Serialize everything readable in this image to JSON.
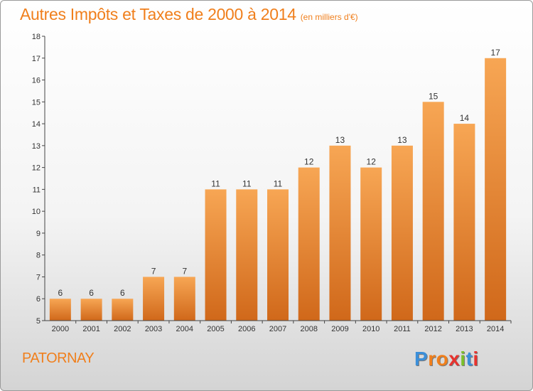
{
  "header": {
    "title": "Autres Impôts et Taxes de 2000 à 2014",
    "subtitle": "(en milliers d'€)"
  },
  "footer": {
    "commune": "PATORNAY",
    "brand": "Proxiti",
    "brand_colors": [
      "#3b8fd9",
      "#f07f1c",
      "#f07f1c",
      "#e8322d",
      "#7bbf2a",
      "#3b8fd9",
      "#e8322d"
    ]
  },
  "colors": {
    "accent": "#f07f1c",
    "bar_top": "#f7a654",
    "bar_bottom": "#d0681a",
    "axis": "#444444"
  },
  "chart_data": {
    "type": "bar",
    "title": "Autres Impôts et Taxes de 2000 à 2014",
    "subtitle": "(en milliers d'€)",
    "categories": [
      "2000",
      "2001",
      "2002",
      "2003",
      "2004",
      "2005",
      "2006",
      "2007",
      "2008",
      "2009",
      "2010",
      "2011",
      "2012",
      "2013",
      "2014"
    ],
    "values": [
      6,
      6,
      6,
      7,
      7,
      11,
      11,
      11,
      12,
      13,
      12,
      13,
      15,
      14,
      17
    ],
    "ylim": [
      5,
      18
    ],
    "yticks": [
      5,
      6,
      7,
      8,
      9,
      10,
      11,
      12,
      13,
      14,
      15,
      16,
      17,
      18
    ],
    "grid": false,
    "legend": "none",
    "data_labels": true
  }
}
